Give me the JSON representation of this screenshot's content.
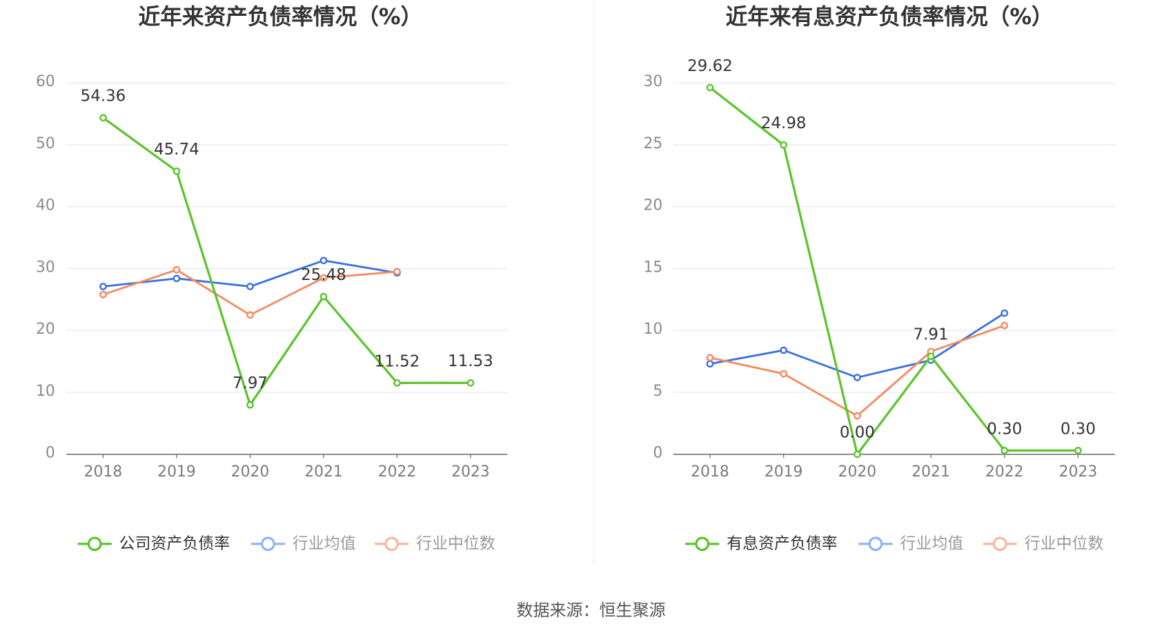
{
  "chart_data": [
    {
      "type": "line",
      "title": "近年来资产负债率情况（%）",
      "categories": [
        "2018",
        "2019",
        "2020",
        "2021",
        "2022",
        "2023"
      ],
      "ylim": [
        0,
        60
      ],
      "yticks": [
        0,
        10,
        20,
        30,
        40,
        50,
        60
      ],
      "grid": true,
      "legend_position": "bottom",
      "series": [
        {
          "name": "公司资产负债率",
          "values": [
            54.36,
            45.74,
            7.97,
            25.48,
            11.52,
            11.53
          ],
          "labels": [
            "54.36",
            "45.74",
            "7.97",
            "25.48",
            "11.52",
            "11.53"
          ],
          "color": "#5bc42d",
          "legend_color": "#5bc42d",
          "legend_text_color": "#333333"
        },
        {
          "name": "行业均值",
          "values": [
            27.1,
            28.4,
            27.1,
            31.3,
            29.3,
            null
          ],
          "color": "#3b70e0",
          "legend_color": "#93b3f2",
          "legend_text_color": "#999999"
        },
        {
          "name": "行业中位数",
          "values": [
            25.8,
            29.8,
            22.5,
            28.5,
            29.5,
            null
          ],
          "color": "#f38b5f",
          "legend_color": "#f7b8a0",
          "legend_text_color": "#999999"
        }
      ]
    },
    {
      "type": "line",
      "title": "近年来有息资产负债率情况（%）",
      "categories": [
        "2018",
        "2019",
        "2020",
        "2021",
        "2022",
        "2023"
      ],
      "ylim": [
        0,
        30
      ],
      "yticks": [
        0,
        5,
        10,
        15,
        20,
        25,
        30
      ],
      "grid": true,
      "legend_position": "bottom",
      "series": [
        {
          "name": "有息资产负债率",
          "values": [
            29.62,
            24.98,
            0.0,
            7.91,
            0.3,
            0.3
          ],
          "labels": [
            "29.62",
            "24.98",
            "0.00",
            "7.91",
            "0.30",
            "0.30"
          ],
          "color": "#5bc42d",
          "legend_color": "#5bc42d",
          "legend_text_color": "#333333"
        },
        {
          "name": "行业均值",
          "values": [
            7.3,
            8.4,
            6.2,
            7.6,
            11.4,
            null
          ],
          "color": "#3b70e0",
          "legend_color": "#93b3f2",
          "legend_text_color": "#999999"
        },
        {
          "name": "行业中位数",
          "values": [
            7.8,
            6.5,
            3.1,
            8.3,
            10.4,
            null
          ],
          "color": "#f38b5f",
          "legend_color": "#f7b8a0",
          "legend_text_color": "#999999"
        }
      ]
    }
  ],
  "source": "数据来源：恒生聚源"
}
